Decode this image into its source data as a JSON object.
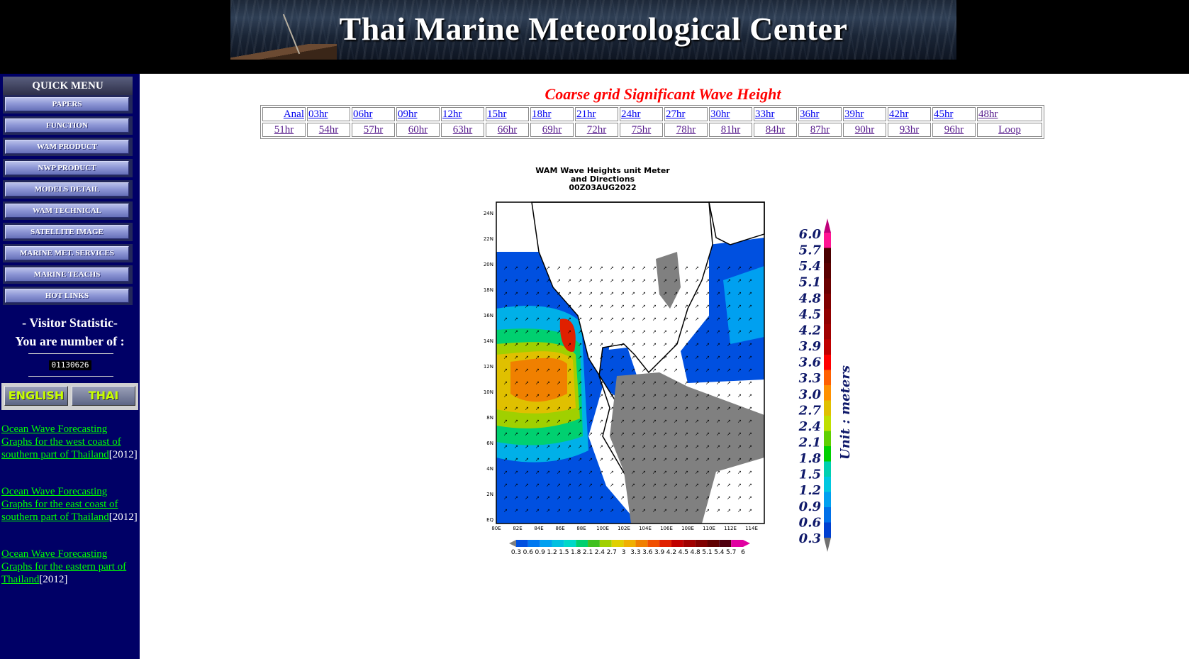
{
  "header": {
    "title": "Thai Marine Meteorological Center"
  },
  "sidebar": {
    "quick_menu_title": "QUICK MENU",
    "menu": [
      "PAPERS",
      "FUNCTION",
      "WAM PRODUCT",
      "NWP PRODUCT",
      "MODELS DETAIL",
      "WAM TECHNICAL",
      "SATELLITE IMAGE",
      "MARINE MET. SERVICES",
      "MARINE TEACHS",
      "HOT LINKS"
    ],
    "visitor_title": "- Visitor Statistic-",
    "visitor_text": "You are number of :",
    "counter": "01130626",
    "lang_english": "ENGLISH",
    "lang_thai": "THAI",
    "links": [
      {
        "text": "Ocean Wave Forecasting Graphs for the west coast of southern part of Thailand",
        "year": "[2012]"
      },
      {
        "text": "Ocean Wave Forecasting Graphs for the east coast of southern part of Thailand",
        "year": "[2012]"
      },
      {
        "text": "Ocean Wave Forecasting Graphs for the eastern part of Thailand",
        "year": "[2012]"
      }
    ]
  },
  "main": {
    "title": "Coarse grid Significant Wave Height",
    "row1": [
      "Anal",
      "03hr",
      "06hr",
      "09hr",
      "12hr",
      "15hr",
      "18hr",
      "21hr",
      "24hr",
      "27hr",
      "30hr",
      "33hr",
      "36hr",
      "39hr",
      "42hr",
      "45hr",
      "48hr"
    ],
    "row2": [
      "51hr",
      "54hr",
      "57hr",
      "60hr",
      "63hr",
      "66hr",
      "69hr",
      "72hr",
      "75hr",
      "78hr",
      "81hr",
      "84hr",
      "87hr",
      "90hr",
      "93hr",
      "96hr",
      "Loop"
    ],
    "map": {
      "caption_line1": "WAM Wave Heights unit Meter",
      "caption_line2": "and Directions",
      "caption_line3": "00Z03AUG2022",
      "lat_labels": [
        "24N",
        "22N",
        "20N",
        "18N",
        "16N",
        "14N",
        "12N",
        "10N",
        "8N",
        "6N",
        "4N",
        "2N",
        "EQ"
      ],
      "lon_labels": [
        "80E",
        "82E",
        "84E",
        "86E",
        "88E",
        "100E",
        "102E",
        "104E",
        "106E",
        "108E",
        "110E",
        "112E",
        "114E"
      ],
      "bar_labels": [
        "0.3",
        "0.6",
        "0.9",
        "1.2",
        "1.5",
        "1.8",
        "2.1",
        "2.4",
        "2.7",
        "3",
        "3.3",
        "3.6",
        "3.9",
        "4.2",
        "4.5",
        "4.8",
        "5.1",
        "5.4",
        "5.7",
        "6"
      ],
      "bar_colors": [
        "#0050e0",
        "#0078f0",
        "#00a0f0",
        "#00c0e0",
        "#00d8c8",
        "#00d070",
        "#40c020",
        "#a0d000",
        "#e0d000",
        "#f0b000",
        "#f08000",
        "#f05000",
        "#e02000",
        "#c00000",
        "#a00000",
        "#800000",
        "#600000",
        "#500010",
        "#e000a0"
      ]
    },
    "legend": {
      "labels": [
        "6.0",
        "5.7",
        "5.4",
        "5.1",
        "4.8",
        "4.5",
        "4.2",
        "3.9",
        "3.6",
        "3.3",
        "3.0",
        "2.7",
        "2.4",
        "2.1",
        "1.8",
        "1.5",
        "1.2",
        "0.9",
        "0.6",
        "0.3"
      ],
      "unit": "Unit : meters",
      "colors": [
        "#ff1493",
        "#4a0000",
        "#5a0000",
        "#6a0000",
        "#800000",
        "#900000",
        "#a00000",
        "#c00000",
        "#ff0000",
        "#ff6000",
        "#ff9000",
        "#e0c000",
        "#c0e000",
        "#60d000",
        "#00d000",
        "#00d0b0",
        "#00c8e0",
        "#00a0f0",
        "#0070e8",
        "#0040d0"
      ]
    }
  }
}
